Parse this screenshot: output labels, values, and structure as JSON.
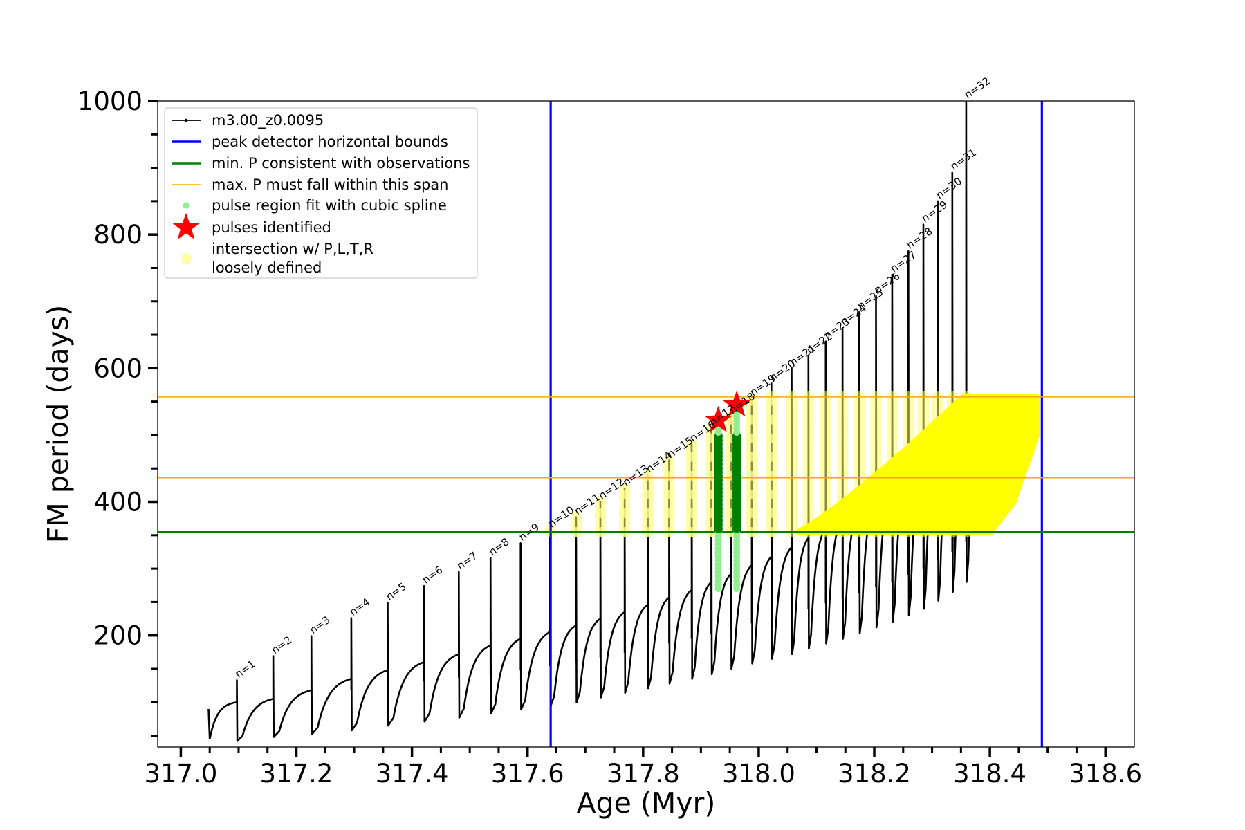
{
  "chart_data": {
    "type": "line",
    "title": "",
    "xlabel": "Age (Myr)",
    "ylabel": "FM period (days)",
    "xlim": [
      316.96,
      318.65
    ],
    "ylim": [
      33,
      1000
    ],
    "x_ticks": [
      {
        "value": 317.0,
        "label": "317.0"
      },
      {
        "value": 317.2,
        "label": "317.2"
      },
      {
        "value": 317.4,
        "label": "317.4"
      },
      {
        "value": 317.6,
        "label": "317.6"
      },
      {
        "value": 317.8,
        "label": "317.8"
      },
      {
        "value": 318.0,
        "label": "318.0"
      },
      {
        "value": 318.2,
        "label": "318.2"
      },
      {
        "value": 318.4,
        "label": "318.4"
      },
      {
        "value": 318.6,
        "label": "318.6"
      }
    ],
    "y_ticks": [
      {
        "value": 200,
        "label": "200"
      },
      {
        "value": 400,
        "label": "400"
      },
      {
        "value": 600,
        "label": "600"
      },
      {
        "value": 800,
        "label": "800"
      },
      {
        "value": 1000,
        "label": "1000"
      }
    ],
    "grid": false,
    "legend_position": "upper-left",
    "legend": [
      {
        "label": "m3.00_z0.0095",
        "kind": "line-marker",
        "color": "#000000"
      },
      {
        "label": "peak detector horizontal bounds",
        "kind": "line",
        "color": "#0000ff"
      },
      {
        "label": "min. P consistent with observations",
        "kind": "line",
        "color": "#008000"
      },
      {
        "label": "max. P must fall within this span",
        "kind": "thin-line",
        "color": "#ffa500"
      },
      {
        "label": "pulse region fit with cubic spline",
        "kind": "dot",
        "color": "#90ee90"
      },
      {
        "label": "pulses identified",
        "kind": "star",
        "color": "#ff0000"
      },
      {
        "label": "intersection w/ P,L,T,R",
        "label2": "loosely defined",
        "kind": "big-dot",
        "color": "#ffffaa"
      }
    ],
    "series": [
      {
        "name": "m3.00_z0.0095",
        "color": "#000000",
        "pulses": [
          {
            "n": 1,
            "age": 317.097,
            "peak": 133,
            "base": 100,
            "trough": 42,
            "end": 105
          },
          {
            "n": 2,
            "age": 317.16,
            "peak": 169,
            "base": 106,
            "trough": 48,
            "end": 118
          },
          {
            "n": 3,
            "age": 317.226,
            "peak": 199,
            "base": 118,
            "trough": 52,
            "end": 135
          },
          {
            "n": 4,
            "age": 317.295,
            "peak": 226,
            "base": 135,
            "trough": 58,
            "end": 148
          },
          {
            "n": 5,
            "age": 317.358,
            "peak": 249,
            "base": 148,
            "trough": 65,
            "end": 160
          },
          {
            "n": 6,
            "age": 317.421,
            "peak": 274,
            "base": 160,
            "trough": 71,
            "end": 172
          },
          {
            "n": 7,
            "age": 317.481,
            "peak": 295,
            "base": 172,
            "trough": 77,
            "end": 185
          },
          {
            "n": 8,
            "age": 317.536,
            "peak": 316,
            "base": 185,
            "trough": 83,
            "end": 195
          },
          {
            "n": 9,
            "age": 317.588,
            "peak": 338,
            "base": 195,
            "trough": 89,
            "end": 205
          },
          {
            "n": 10,
            "age": 317.639,
            "peak": 358,
            "base": 205,
            "trough": 94,
            "end": 215
          },
          {
            "n": 11,
            "age": 317.684,
            "peak": 377,
            "base": 215,
            "trough": 100,
            "end": 225
          },
          {
            "n": 12,
            "age": 317.726,
            "peak": 400,
            "base": 225,
            "trough": 107,
            "end": 235
          },
          {
            "n": 13,
            "age": 317.768,
            "peak": 420,
            "base": 235,
            "trough": 114,
            "end": 246
          },
          {
            "n": 14,
            "age": 317.808,
            "peak": 440,
            "base": 246,
            "trough": 121,
            "end": 257
          },
          {
            "n": 15,
            "age": 317.845,
            "peak": 462,
            "base": 257,
            "trough": 128,
            "end": 268
          },
          {
            "n": 16,
            "age": 317.884,
            "peak": 486,
            "base": 268,
            "trough": 135,
            "end": 280
          },
          {
            "n": 17,
            "age": 317.918,
            "peak": 510,
            "base": 280,
            "trough": 142,
            "end": 292
          },
          {
            "n": 18,
            "age": 317.952,
            "peak": 528,
            "base": 292,
            "trough": 150,
            "end": 305
          },
          {
            "n": 19,
            "age": 317.988,
            "peak": 555,
            "base": 305,
            "trough": 158,
            "end": 318
          },
          {
            "n": 20,
            "age": 318.022,
            "peak": 577,
            "base": 318,
            "trough": 165,
            "end": 332
          },
          {
            "n": 21,
            "age": 318.057,
            "peak": 600,
            "base": 332,
            "trough": 172,
            "end": 346
          },
          {
            "n": 22,
            "age": 318.086,
            "peak": 618,
            "base": 346,
            "trough": 180,
            "end": 360
          },
          {
            "n": 23,
            "age": 318.116,
            "peak": 640,
            "base": 360,
            "trough": 188,
            "end": 375
          },
          {
            "n": 24,
            "age": 318.145,
            "peak": 660,
            "base": 375,
            "trough": 195,
            "end": 390
          },
          {
            "n": 25,
            "age": 318.174,
            "peak": 684,
            "base": 390,
            "trough": 203,
            "end": 406
          },
          {
            "n": 26,
            "age": 318.203,
            "peak": 708,
            "base": 406,
            "trough": 212,
            "end": 423
          },
          {
            "n": 27,
            "age": 318.231,
            "peak": 740,
            "base": 423,
            "trough": 220,
            "end": 440
          },
          {
            "n": 28,
            "age": 318.259,
            "peak": 775,
            "base": 440,
            "trough": 230,
            "end": 458
          },
          {
            "n": 29,
            "age": 318.285,
            "peak": 815,
            "base": 458,
            "trough": 240,
            "end": 476
          },
          {
            "n": 30,
            "age": 318.31,
            "peak": 850,
            "base": 476,
            "trough": 252,
            "end": 496
          },
          {
            "n": 31,
            "age": 318.335,
            "peak": 893,
            "base": 496,
            "trough": 265,
            "end": 518
          },
          {
            "n": 32,
            "age": 318.359,
            "peak": 1000,
            "base": 518,
            "trough": 280,
            "end": 540
          }
        ]
      },
      {
        "name": "pulses identified",
        "color": "#ff0000",
        "points": [
          {
            "x": 317.93,
            "y": 522
          },
          {
            "x": 317.962,
            "y": 545
          }
        ]
      },
      {
        "name": "pulse region fit with cubic spline",
        "color": "#90ee90",
        "segments": [
          {
            "x": 317.93,
            "y0": 270,
            "y1": 515
          },
          {
            "x": 317.962,
            "y0": 270,
            "y1": 535
          }
        ]
      }
    ],
    "reference_lines": [
      {
        "name": "peak detector horizontal bounds",
        "orientation": "vertical",
        "values": [
          317.64,
          318.49
        ],
        "color": "#0000ff"
      },
      {
        "name": "min. P consistent with observations",
        "orientation": "horizontal",
        "values": [
          355
        ],
        "color": "#008000"
      },
      {
        "name": "max. P must fall within this span",
        "orientation": "horizontal",
        "values": [
          436,
          557
        ],
        "color": "#ffa500"
      }
    ]
  }
}
